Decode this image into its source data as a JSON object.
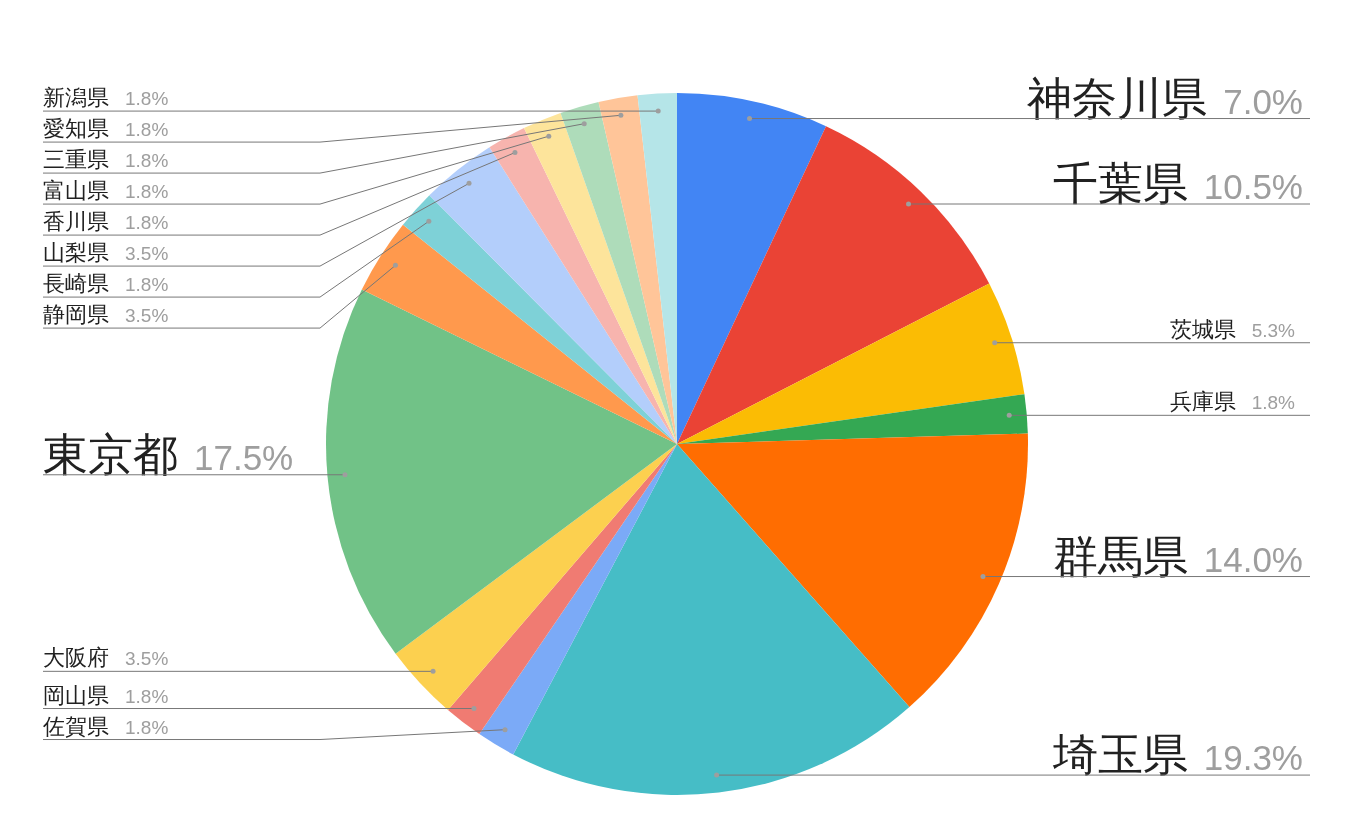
{
  "chart_data": {
    "type": "pie",
    "categories": [
      "神奈川県",
      "千葉県",
      "茨城県",
      "兵庫県",
      "群馬県",
      "埼玉県",
      "佐賀県",
      "岡山県",
      "大阪府",
      "東京都",
      "静岡県",
      "長崎県",
      "山梨県",
      "香川県",
      "富山県",
      "三重県",
      "愛知県",
      "新潟県"
    ],
    "values": [
      7.0,
      10.5,
      5.3,
      1.8,
      14.0,
      19.3,
      1.8,
      1.8,
      3.5,
      17.5,
      3.5,
      1.8,
      3.5,
      1.8,
      1.8,
      1.8,
      1.8,
      1.8
    ],
    "value_labels": [
      "7.0%",
      "10.5%",
      "5.3%",
      "1.8%",
      "14.0%",
      "19.3%",
      "1.8%",
      "1.8%",
      "3.5%",
      "17.5%",
      "3.5%",
      "1.8%",
      "3.5%",
      "1.8%",
      "1.8%",
      "1.8%",
      "1.8%",
      "1.8%"
    ],
    "colors": [
      "#4285f4",
      "#ea4335",
      "#fbbc04",
      "#34a853",
      "#ff6d01",
      "#46bdc6",
      "#7baaf7",
      "#f07b72",
      "#fcd04f",
      "#71c287",
      "#ff994d",
      "#7ed1d7",
      "#b3cefb",
      "#f7b4ae",
      "#fde49b",
      "#aedcba",
      "#ffc599",
      "#b5e5e8"
    ]
  }
}
